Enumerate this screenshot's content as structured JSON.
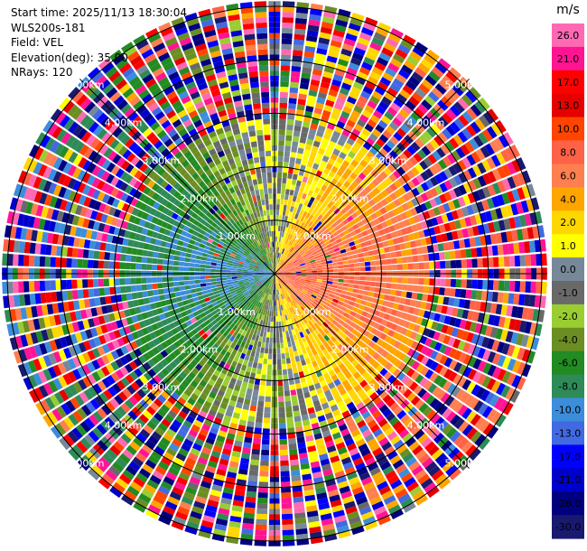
{
  "header": {
    "start_time": "Start time: 2025/11/13 18:30:04",
    "instrument": "WLS200s-181",
    "field": "Field: VEL",
    "elevation": "Elevation(deg): 35.00",
    "nrays": "NRays: 120"
  },
  "colorbar": {
    "unit": "m/s",
    "ticks": [
      "26.0",
      "21.0",
      "17.0",
      "13.0",
      "10.0",
      "8.0",
      "6.0",
      "4.0",
      "2.0",
      "1.0",
      "0.0",
      "-1.0",
      "-2.0",
      "-4.0",
      "-6.0",
      "-8.0",
      "-10.0",
      "-13.0",
      "-17.0",
      "-21.0",
      "-26.0",
      "-30.0"
    ],
    "colors": [
      "#ff69b4",
      "#ff1493",
      "#ff0000",
      "#e60000",
      "#ff4500",
      "#ff6347",
      "#ff7f50",
      "#ffa500",
      "#ffd700",
      "#ffff00",
      "#778899",
      "#696969",
      "#9acd32",
      "#6b8e23",
      "#228b22",
      "#2e8b57",
      "#3c8ddb",
      "#4169e1",
      "#0000ff",
      "#0000cd",
      "#000080",
      "#191970"
    ]
  },
  "chart_data": {
    "type": "heatmap",
    "projection": "polar PPI (plan position indicator)",
    "field": "VEL",
    "units": "m/s",
    "n_rays": 120,
    "elevation_deg": 35.0,
    "range_rings_km": [
      1.0,
      2.0,
      3.0,
      4.0,
      5.0
    ],
    "ring_labels": [
      "1.00km",
      "2.00km",
      "3.00km",
      "4.00km",
      "5.00km"
    ],
    "max_range_km": 5.1,
    "value_range": [
      -30,
      30
    ],
    "pattern": "positive (away) velocities 4 to 13 m/s on the east half, negative (toward) velocities -4 to -17 m/s on the west half, noisy speckle beyond about 3 km range"
  }
}
